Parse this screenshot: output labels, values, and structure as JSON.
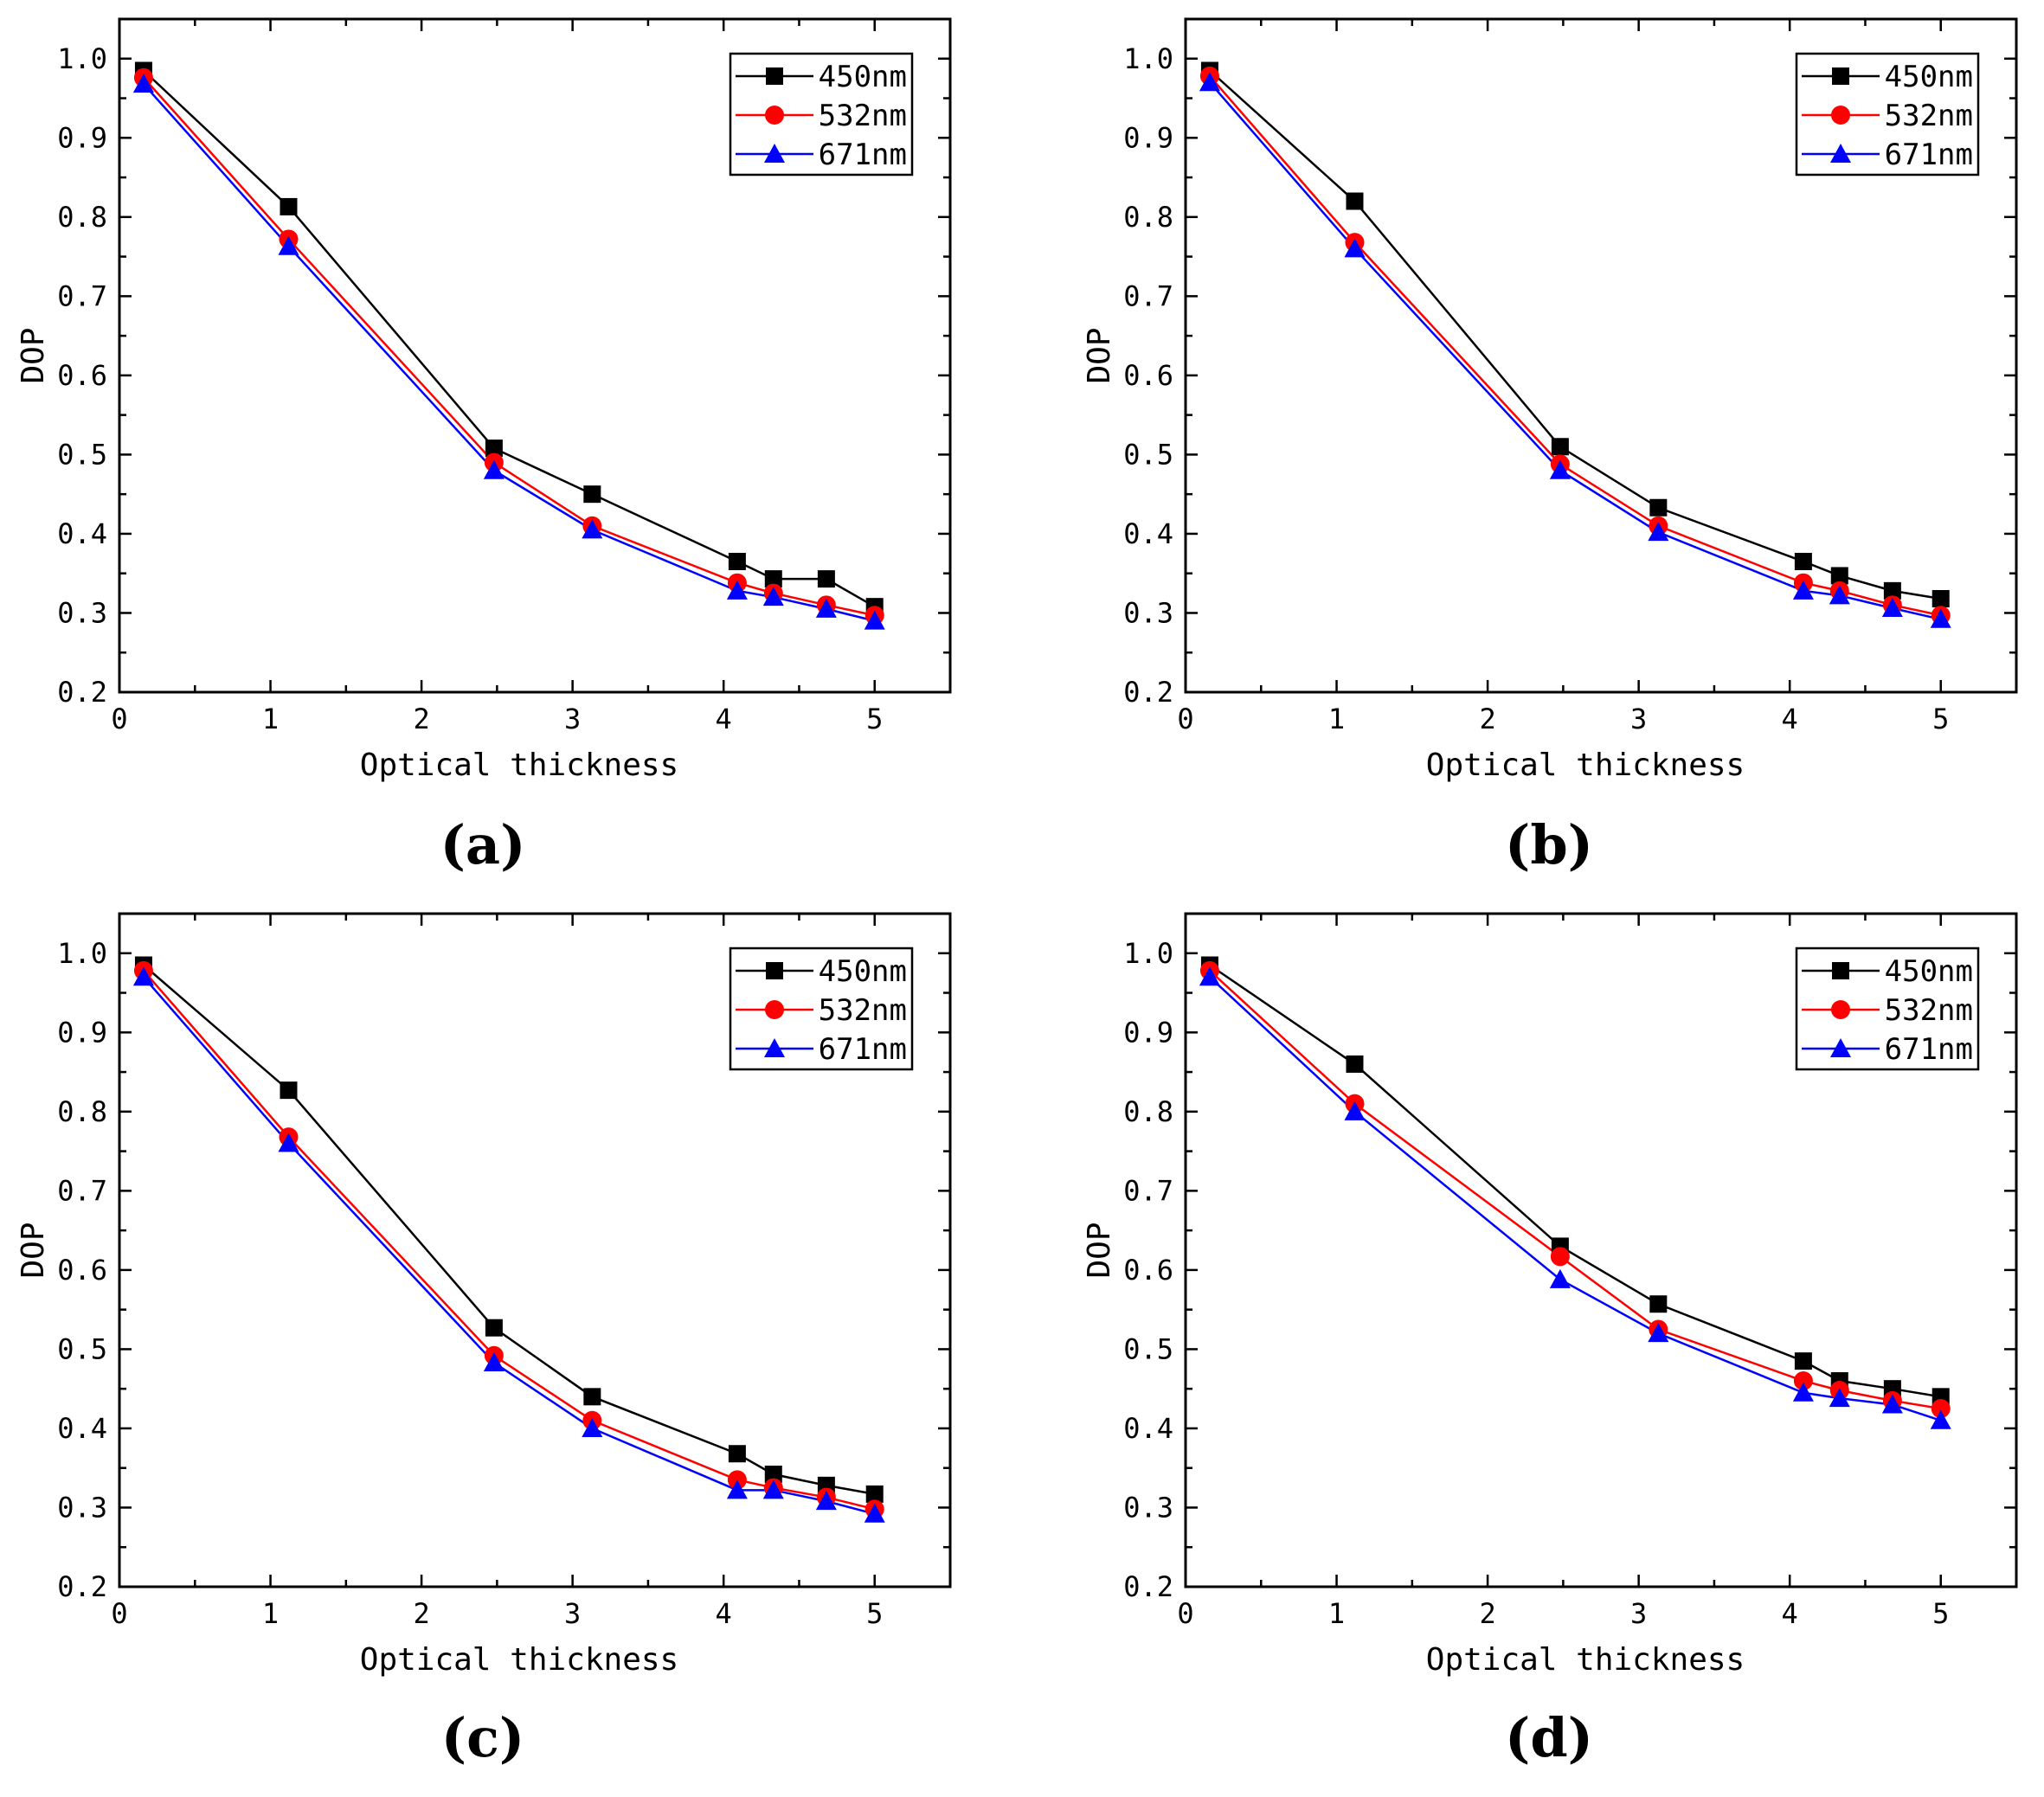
{
  "figure": {
    "colors": {
      "s450": "#000000",
      "s532": "#ff0000",
      "s671": "#0000ff"
    }
  },
  "chart_data": [
    {
      "type": "line",
      "panel_label": "(a)",
      "xlabel": "Optical thickness",
      "ylabel": "DOP",
      "xlim": [
        0,
        5.5
      ],
      "ylim": [
        0.2,
        1.05
      ],
      "xticks": [
        0,
        1,
        2,
        3,
        4,
        5
      ],
      "xtick_labels": [
        "0",
        "1",
        "2",
        "3",
        "4",
        "5"
      ],
      "yticks": [
        0.2,
        0.3,
        0.4,
        0.5,
        0.6,
        0.7,
        0.8,
        0.9,
        1.0
      ],
      "ytick_labels": [
        "0.2",
        "0.3",
        "0.4",
        "0.5",
        "0.6",
        "0.7",
        "0.8",
        "0.9",
        "1.0"
      ],
      "legend_position": "top-right",
      "x": [
        0.16,
        1.12,
        2.48,
        3.13,
        4.09,
        4.33,
        4.68,
        5.0
      ],
      "series": [
        {
          "name": "450nm",
          "marker": "square",
          "color": "#000000",
          "values": [
            0.985,
            0.813,
            0.508,
            0.45,
            0.365,
            0.343,
            0.343,
            0.308
          ]
        },
        {
          "name": "532nm",
          "marker": "circle",
          "color": "#ff0000",
          "values": [
            0.976,
            0.772,
            0.49,
            0.41,
            0.338,
            0.325,
            0.31,
            0.297
          ]
        },
        {
          "name": "671nm",
          "marker": "triangle",
          "color": "#0000ff",
          "values": [
            0.968,
            0.763,
            0.48,
            0.405,
            0.328,
            0.32,
            0.305,
            0.29
          ]
        }
      ]
    },
    {
      "type": "line",
      "panel_label": "(b)",
      "xlabel": "Optical thickness",
      "ylabel": "DOP",
      "xlim": [
        0,
        5.5
      ],
      "ylim": [
        0.2,
        1.05
      ],
      "xticks": [
        0,
        1,
        2,
        3,
        4,
        5
      ],
      "xtick_labels": [
        "0",
        "1",
        "2",
        "3",
        "4",
        "5"
      ],
      "yticks": [
        0.2,
        0.3,
        0.4,
        0.5,
        0.6,
        0.7,
        0.8,
        0.9,
        1.0
      ],
      "ytick_labels": [
        "0.2",
        "0.3",
        "0.4",
        "0.5",
        "0.6",
        "0.7",
        "0.8",
        "0.9",
        "1.0"
      ],
      "legend_position": "top-right",
      "x": [
        0.16,
        1.12,
        2.48,
        3.13,
        4.09,
        4.33,
        4.68,
        5.0
      ],
      "series": [
        {
          "name": "450nm",
          "marker": "square",
          "color": "#000000",
          "values": [
            0.985,
            0.82,
            0.51,
            0.433,
            0.365,
            0.347,
            0.328,
            0.318
          ]
        },
        {
          "name": "532nm",
          "marker": "circle",
          "color": "#ff0000",
          "values": [
            0.978,
            0.768,
            0.488,
            0.41,
            0.338,
            0.328,
            0.31,
            0.297
          ]
        },
        {
          "name": "671nm",
          "marker": "triangle",
          "color": "#0000ff",
          "values": [
            0.97,
            0.76,
            0.48,
            0.402,
            0.328,
            0.322,
            0.306,
            0.292
          ]
        }
      ]
    },
    {
      "type": "line",
      "panel_label": "(c)",
      "xlabel": "Optical thickness",
      "ylabel": "DOP",
      "xlim": [
        0,
        5.5
      ],
      "ylim": [
        0.2,
        1.05
      ],
      "xticks": [
        0,
        1,
        2,
        3,
        4,
        5
      ],
      "xtick_labels": [
        "0",
        "1",
        "2",
        "3",
        "4",
        "5"
      ],
      "yticks": [
        0.2,
        0.3,
        0.4,
        0.5,
        0.6,
        0.7,
        0.8,
        0.9,
        1.0
      ],
      "ytick_labels": [
        "0.2",
        "0.3",
        "0.4",
        "0.5",
        "0.6",
        "0.7",
        "0.8",
        "0.9",
        "1.0"
      ],
      "legend_position": "top-right",
      "x": [
        0.16,
        1.12,
        2.48,
        3.13,
        4.09,
        4.33,
        4.68,
        5.0
      ],
      "series": [
        {
          "name": "450nm",
          "marker": "square",
          "color": "#000000",
          "values": [
            0.985,
            0.827,
            0.527,
            0.44,
            0.368,
            0.342,
            0.328,
            0.317
          ]
        },
        {
          "name": "532nm",
          "marker": "circle",
          "color": "#ff0000",
          "values": [
            0.978,
            0.768,
            0.492,
            0.41,
            0.335,
            0.325,
            0.313,
            0.298
          ]
        },
        {
          "name": "671nm",
          "marker": "triangle",
          "color": "#0000ff",
          "values": [
            0.97,
            0.76,
            0.483,
            0.4,
            0.322,
            0.322,
            0.308,
            0.292
          ]
        }
      ]
    },
    {
      "type": "line",
      "panel_label": "(d)",
      "xlabel": "Optical thickness",
      "ylabel": "DOP",
      "xlim": [
        0,
        5.5
      ],
      "ylim": [
        0.2,
        1.05
      ],
      "xticks": [
        0,
        1,
        2,
        3,
        4,
        5
      ],
      "xtick_labels": [
        "0",
        "1",
        "2",
        "3",
        "4",
        "5"
      ],
      "yticks": [
        0.2,
        0.3,
        0.4,
        0.5,
        0.6,
        0.7,
        0.8,
        0.9,
        1.0
      ],
      "ytick_labels": [
        "0.2",
        "0.3",
        "0.4",
        "0.5",
        "0.6",
        "0.7",
        "0.8",
        "0.9",
        "1.0"
      ],
      "legend_position": "top-right",
      "x": [
        0.16,
        1.12,
        2.48,
        3.13,
        4.09,
        4.33,
        4.68,
        5.0
      ],
      "series": [
        {
          "name": "450nm",
          "marker": "square",
          "color": "#000000",
          "values": [
            0.985,
            0.86,
            0.63,
            0.557,
            0.485,
            0.46,
            0.45,
            0.44
          ]
        },
        {
          "name": "532nm",
          "marker": "circle",
          "color": "#ff0000",
          "values": [
            0.978,
            0.81,
            0.617,
            0.525,
            0.46,
            0.448,
            0.435,
            0.425
          ]
        },
        {
          "name": "671nm",
          "marker": "triangle",
          "color": "#0000ff",
          "values": [
            0.97,
            0.8,
            0.588,
            0.52,
            0.445,
            0.438,
            0.43,
            0.41
          ]
        }
      ]
    }
  ]
}
